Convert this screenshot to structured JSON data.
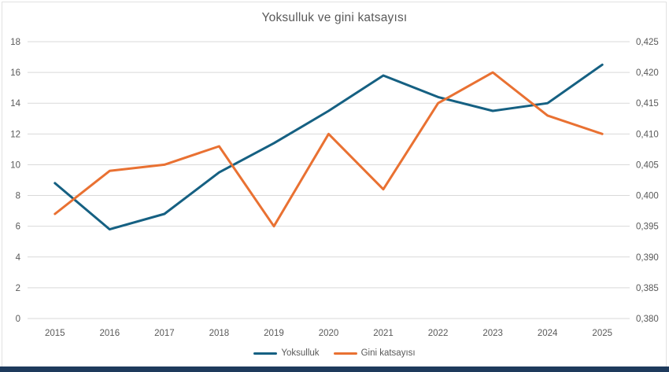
{
  "chart_data": {
    "type": "line",
    "title": "Yoksulluk ve gini katsayısı",
    "categories": [
      "2015",
      "2016",
      "2017",
      "2018",
      "2019",
      "2020",
      "2021",
      "2022",
      "2023",
      "2024",
      "2025"
    ],
    "series": [
      {
        "name": "Yoksulluk",
        "axis": "left",
        "color": "#156082",
        "values": [
          8.8,
          5.8,
          6.8,
          9.5,
          11.4,
          13.5,
          15.8,
          14.4,
          13.5,
          14.0,
          16.5
        ]
      },
      {
        "name": "Gini katsayısı",
        "axis": "right",
        "color": "#E97132",
        "values": [
          0.397,
          0.404,
          0.405,
          0.408,
          0.395,
          0.41,
          0.401,
          0.415,
          0.42,
          0.413,
          0.41
        ]
      }
    ],
    "left_axis": {
      "min": 0,
      "max": 18,
      "step": 2,
      "tick_labels": [
        "0",
        "2",
        "4",
        "6",
        "8",
        "10",
        "12",
        "14",
        "16",
        "18"
      ]
    },
    "right_axis": {
      "min": 0.38,
      "max": 0.425,
      "step": 0.005,
      "tick_labels": [
        "0,380",
        "0,385",
        "0,390",
        "0,395",
        "0,400",
        "0,405",
        "0,410",
        "0,415",
        "0,420",
        "0,425"
      ]
    },
    "grid": true,
    "legend_position": "bottom",
    "legend": {
      "items": [
        {
          "label": "Yoksulluk"
        },
        {
          "label": "Gini katsayısı"
        }
      ]
    }
  },
  "colors": {
    "text": "#595959",
    "gridline": "#d9d9d9",
    "background": "#ffffff",
    "window_bottom_bar": "#1e3a5c"
  }
}
